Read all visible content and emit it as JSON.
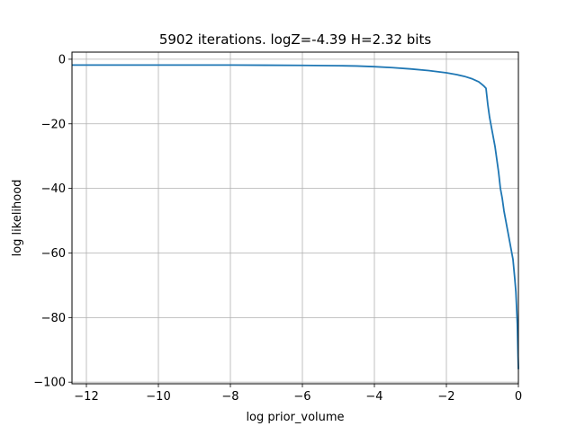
{
  "chart_data": {
    "type": "line",
    "title": "5902 iterations. logZ=-4.39 H=2.32 bits",
    "xlabel": "log prior_volume",
    "ylabel": "log likelihood",
    "xlim": [
      -12.4,
      0.0
    ],
    "ylim": [
      -100.5,
      2.2
    ],
    "grid": true,
    "x_ticks": [
      -12,
      -10,
      -8,
      -6,
      -4,
      -2,
      0
    ],
    "y_ticks": [
      0,
      -20,
      -40,
      -60,
      -80,
      -100
    ],
    "x_tick_labels": [
      "−12",
      "−10",
      "−8",
      "−6",
      "−4",
      "−2",
      "0"
    ],
    "y_tick_labels": [
      "0",
      "−20",
      "−40",
      "−60",
      "−80",
      "−100"
    ],
    "series": [
      {
        "color": "#1f77b4",
        "x": [
          -12.4,
          -12.0,
          -11.0,
          -10.0,
          -9.0,
          -8.0,
          -7.0,
          -6.0,
          -5.0,
          -4.5,
          -4.0,
          -3.5,
          -3.0,
          -2.5,
          -2.0,
          -1.7,
          -1.5,
          -1.3,
          -1.1,
          -1.0,
          -0.95,
          -0.9,
          -0.88,
          -0.85,
          -0.8,
          -0.75,
          -0.7,
          -0.65,
          -0.6,
          -0.55,
          -0.5,
          -0.45,
          -0.4,
          -0.35,
          -0.3,
          -0.25,
          -0.2,
          -0.15,
          -0.1,
          -0.07,
          -0.05,
          -0.03,
          -0.02,
          -0.01,
          0.0
        ],
        "y": [
          -1.8,
          -1.8,
          -1.8,
          -1.8,
          -1.8,
          -1.8,
          -1.85,
          -1.9,
          -2.0,
          -2.1,
          -2.3,
          -2.6,
          -3.0,
          -3.5,
          -4.2,
          -4.8,
          -5.3,
          -6.0,
          -7.0,
          -7.9,
          -8.4,
          -9.0,
          -11.0,
          -14.0,
          -18.0,
          -21.0,
          -24.0,
          -27.0,
          -31.0,
          -35.0,
          -40.0,
          -43.0,
          -47.0,
          -50.0,
          -53.0,
          -56.0,
          -59.0,
          -62.0,
          -68.0,
          -72.0,
          -77.0,
          -82.0,
          -87.0,
          -92.0,
          -96.0
        ]
      }
    ]
  }
}
